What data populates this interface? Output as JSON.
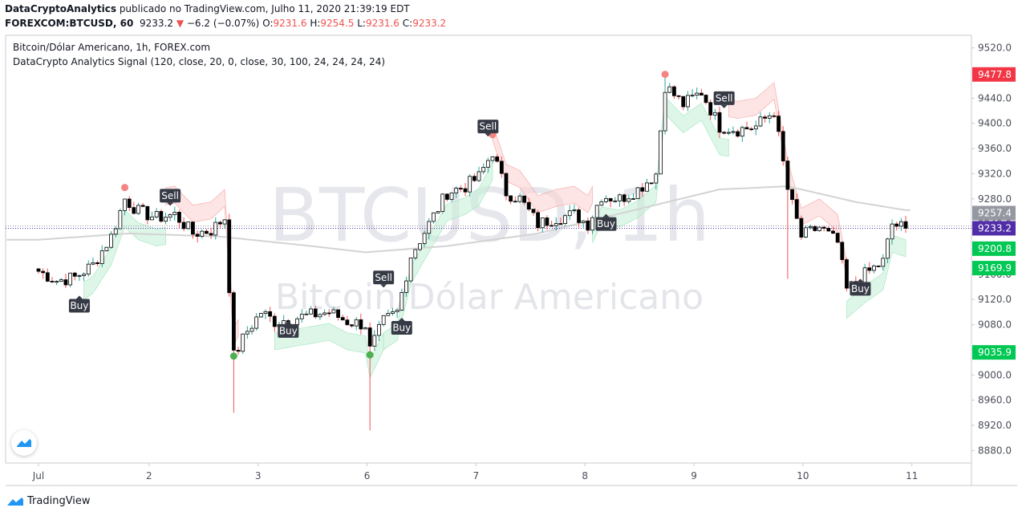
{
  "header": {
    "author": "DataCryptoAnalytics",
    "published_text": "publicado no TradingView.com, Julho 11, 2020 21:39:19 EDT",
    "symbol": "FOREXCOM:BTCUSD, 60",
    "last": "9233.2",
    "change_arrow": "▼",
    "change": "−6.2 (−0.07%)",
    "o_label": "O:",
    "o": "9231.6",
    "h_label": "H:",
    "h": "9254.5",
    "l_label": "L:",
    "l": "9231.6",
    "c_label": "C:",
    "c": "9233.2"
  },
  "legend": {
    "title": "Bitcoin/Dólar Americano, 1h, FOREX.com",
    "indicator": "DataCrypto Analytics Signal (120, close, 20, 0, close, 30, 100, 24, 24, 24, 24)"
  },
  "watermark": {
    "symbol": "BTCUSD, 1h",
    "name": "Bitcoin/Dólar Americano"
  },
  "footer": {
    "brand": "TradingView"
  },
  "colors": {
    "up": "#ffffff",
    "down": "#000000",
    "wick_up": "#26a69a",
    "wick_down": "#ef5350",
    "buy_dot": "#4caf50",
    "sell_dot": "#f48481",
    "band_green": "#c8f0d8",
    "band_red": "#fbd3d3",
    "sma": "#d3d3d3",
    "last_tag": "#512da8",
    "red_tag": "#f23645",
    "green_tag": "#00c853",
    "grey_tag": "#9598a1"
  },
  "chart_data": {
    "type": "candlestick",
    "ylim": [
      8860,
      9540
    ],
    "y_ticks": [
      8880,
      8920,
      8960,
      9000,
      9040,
      9080,
      9120,
      9160,
      9200,
      9240,
      9280,
      9320,
      9360,
      9400,
      9440,
      9480,
      9520
    ],
    "y_tick_labels": [
      "8880.0",
      "8920.0",
      "8960.0",
      "9000.0",
      "9040.0",
      "9080.0",
      "9120.0",
      "9160.0",
      "9200.0",
      "9240.0",
      "9280.0",
      "9320.0",
      "9360.0",
      "9400.0",
      "9440.0",
      "9480.0",
      "9520.0"
    ],
    "x_ticks": [
      {
        "label": "Jul",
        "t": 0
      },
      {
        "label": "2",
        "t": 24
      },
      {
        "label": "3",
        "t": 48
      },
      {
        "label": "6",
        "t": 72
      },
      {
        "label": "7",
        "t": 96
      },
      {
        "label": "8",
        "t": 120
      },
      {
        "label": "9",
        "t": 144
      },
      {
        "label": "10",
        "t": 168
      },
      {
        "label": "11",
        "t": 192
      }
    ],
    "price_tags": [
      {
        "value": 9477.8,
        "label": "9477.8",
        "color": "#f23645"
      },
      {
        "value": 9257.4,
        "label": "9257.4",
        "color": "#9598a1"
      },
      {
        "value": 9233.2,
        "label": "9233.2",
        "color": "#512da8"
      },
      {
        "value": 9200.8,
        "label": "9200.8",
        "color": "#00c853"
      },
      {
        "value": 9169.9,
        "label": "9169.9",
        "color": "#00c853"
      },
      {
        "value": 9035.9,
        "label": "9035.9",
        "color": "#00c853"
      }
    ],
    "signals": [
      {
        "type": "Buy",
        "t": 9,
        "price": 9110
      },
      {
        "type": "Sell",
        "t": 29,
        "price": 9285
      },
      {
        "type": "Buy",
        "t": 55,
        "price": 9070
      },
      {
        "type": "Sell",
        "t": 76,
        "price": 9155
      },
      {
        "type": "Buy",
        "t": 80,
        "price": 9075
      },
      {
        "type": "Sell",
        "t": 99,
        "price": 9395
      },
      {
        "type": "Buy",
        "t": 125,
        "price": 9240
      },
      {
        "type": "Sell",
        "t": 151,
        "price": 9440
      },
      {
        "type": "Buy",
        "t": 181,
        "price": 9137
      }
    ],
    "pivot_dots": [
      {
        "kind": "high",
        "t": 19,
        "price": 9298
      },
      {
        "kind": "low",
        "t": 43,
        "price": 9030
      },
      {
        "kind": "high",
        "t": 100,
        "price": 9382
      },
      {
        "kind": "high",
        "t": 138,
        "price": 9478
      },
      {
        "kind": "low",
        "t": 73,
        "price": 9032
      }
    ],
    "closes_anchor": [
      [
        0,
        9165
      ],
      [
        4,
        9150
      ],
      [
        8,
        9155
      ],
      [
        12,
        9175
      ],
      [
        16,
        9220
      ],
      [
        19,
        9280
      ],
      [
        22,
        9260
      ],
      [
        26,
        9250
      ],
      [
        30,
        9255
      ],
      [
        34,
        9225
      ],
      [
        38,
        9230
      ],
      [
        41,
        9250
      ],
      [
        43,
        9030
      ],
      [
        46,
        9070
      ],
      [
        49,
        9100
      ],
      [
        52,
        9085
      ],
      [
        56,
        9090
      ],
      [
        60,
        9095
      ],
      [
        64,
        9100
      ],
      [
        68,
        9085
      ],
      [
        72,
        9080
      ],
      [
        73,
        9040
      ],
      [
        76,
        9085
      ],
      [
        79,
        9100
      ],
      [
        82,
        9190
      ],
      [
        86,
        9240
      ],
      [
        90,
        9290
      ],
      [
        94,
        9300
      ],
      [
        97,
        9315
      ],
      [
        100,
        9355
      ],
      [
        103,
        9290
      ],
      [
        106,
        9280
      ],
      [
        110,
        9240
      ],
      [
        114,
        9250
      ],
      [
        118,
        9255
      ],
      [
        121,
        9240
      ],
      [
        124,
        9285
      ],
      [
        128,
        9280
      ],
      [
        132,
        9295
      ],
      [
        136,
        9320
      ],
      [
        138,
        9460
      ],
      [
        142,
        9430
      ],
      [
        146,
        9450
      ],
      [
        150,
        9395
      ],
      [
        154,
        9390
      ],
      [
        158,
        9395
      ],
      [
        162,
        9420
      ],
      [
        165,
        9295
      ],
      [
        168,
        9220
      ],
      [
        172,
        9235
      ],
      [
        176,
        9210
      ],
      [
        178,
        9135
      ],
      [
        182,
        9160
      ],
      [
        186,
        9180
      ],
      [
        188,
        9240
      ],
      [
        191,
        9233
      ]
    ],
    "sma_anchor": [
      [
        0,
        9215
      ],
      [
        20,
        9225
      ],
      [
        40,
        9220
      ],
      [
        60,
        9205
      ],
      [
        72,
        9195
      ],
      [
        90,
        9205
      ],
      [
        110,
        9225
      ],
      [
        130,
        9260
      ],
      [
        150,
        9295
      ],
      [
        165,
        9300
      ],
      [
        180,
        9275
      ],
      [
        191,
        9262
      ]
    ]
  }
}
